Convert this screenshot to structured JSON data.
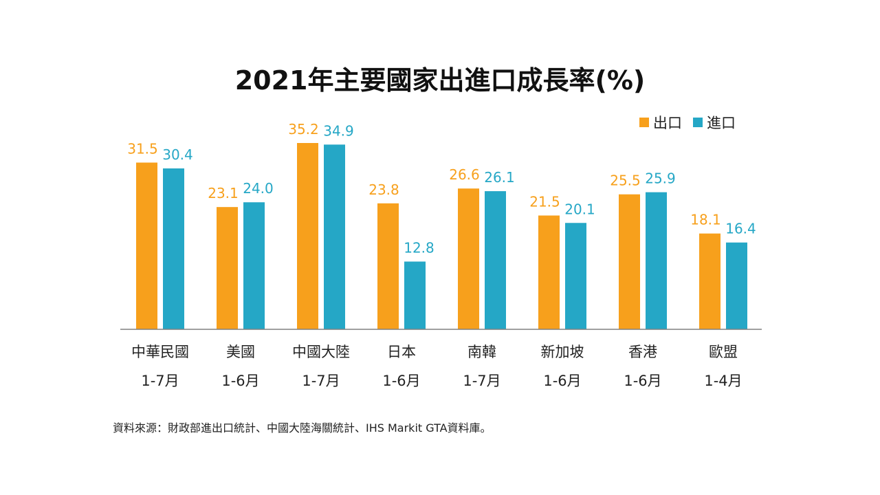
{
  "title": "2021年主要國家出進口成長率(%)",
  "source": "資料來源：財政部進出口統計、中國大陸海關統計、IHS Markit GTA資料庫。",
  "colors": {
    "export": "#F7A01C",
    "import": "#25A7C6",
    "axis": "#808080",
    "text": "#222222"
  },
  "chart_data": {
    "type": "bar",
    "title": "2021年主要國家出進口成長率(%)",
    "categories": [
      "中華民國",
      "美國",
      "中國大陸",
      "日本",
      "南韓",
      "新加坡",
      "香港",
      "歐盟"
    ],
    "periods": [
      "1-7月",
      "1-6月",
      "1-7月",
      "1-6月",
      "1-7月",
      "1-6月",
      "1-6月",
      "1-4月"
    ],
    "series": [
      {
        "name": "出口",
        "color": "#F7A01C",
        "values": [
          31.5,
          23.1,
          35.2,
          23.8,
          26.6,
          21.5,
          25.5,
          18.1
        ]
      },
      {
        "name": "進口",
        "color": "#25A7C6",
        "values": [
          30.4,
          24.0,
          34.9,
          12.8,
          26.1,
          20.1,
          25.9,
          16.4
        ]
      }
    ],
    "ylim": [
      0,
      35.2
    ],
    "grid": false,
    "legend": "top-right",
    "data_labels": true
  }
}
